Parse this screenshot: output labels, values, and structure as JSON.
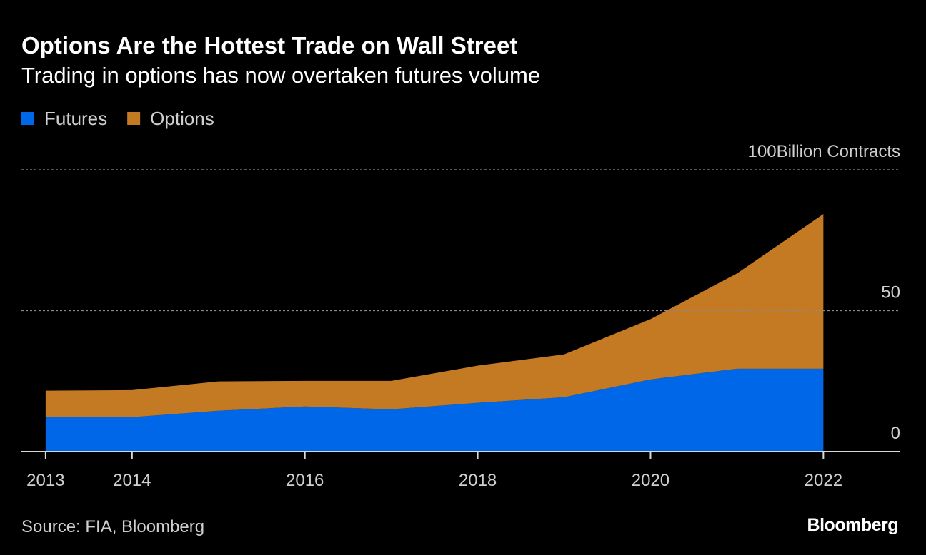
{
  "chart_data": {
    "type": "stacked_area",
    "title": "Options Are the Hottest Trade on Wall Street",
    "subtitle": "Trading in options has now overtaken futures volume",
    "y_unit": "Billion Contracts",
    "source": "Source: FIA, Bloomberg",
    "brand": "Bloomberg",
    "x": [
      2013,
      2014,
      2015,
      2016,
      2017,
      2018,
      2019,
      2020,
      2021,
      2022
    ],
    "series": [
      {
        "name": "Futures",
        "color": "#0068e8",
        "values": [
          12.2,
          12.2,
          14.5,
          16.0,
          15.0,
          17.3,
          19.3,
          25.6,
          29.4,
          29.4
        ]
      },
      {
        "name": "Options",
        "color": "#c47a22",
        "values": [
          9.4,
          9.6,
          10.4,
          9.1,
          10.1,
          13.2,
          15.2,
          21.4,
          33.8,
          54.9
        ]
      }
    ],
    "xlim": [
      2012.72,
      2022.89
    ],
    "xticks": [
      2013,
      2014,
      2016,
      2018,
      2020,
      2022
    ],
    "ylim": [
      0,
      100
    ],
    "yticks": [
      0,
      50,
      100
    ],
    "grid": true
  }
}
